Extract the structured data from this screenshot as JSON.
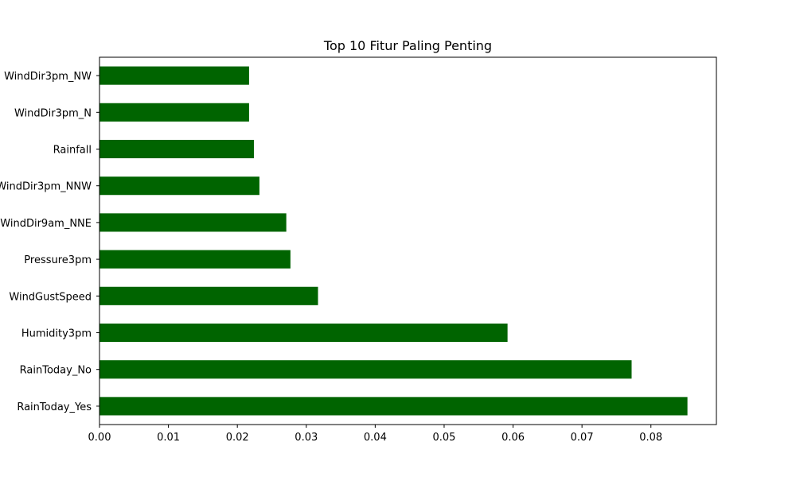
{
  "chart_data": {
    "type": "bar",
    "orientation": "horizontal",
    "title": "Top 10 Fitur Paling Penting",
    "xlabel": "",
    "ylabel": "",
    "categories": [
      "RainToday_Yes",
      "RainToday_No",
      "Humidity3pm",
      "WindGustSpeed",
      "Pressure3pm",
      "WindDir9am_NNE",
      "WindDir3pm_NNW",
      "Rainfall",
      "WindDir3pm_N",
      "WindDir3pm_NW"
    ],
    "values": [
      0.0853,
      0.0772,
      0.0592,
      0.0317,
      0.0277,
      0.0271,
      0.0232,
      0.0224,
      0.0217,
      0.0217
    ],
    "xlim": [
      0,
      0.0895
    ],
    "xticks": [
      "0.00",
      "0.01",
      "0.02",
      "0.03",
      "0.04",
      "0.05",
      "0.06",
      "0.07",
      "0.08"
    ],
    "bar_color": "#006400",
    "grid": false,
    "legend": "none"
  }
}
